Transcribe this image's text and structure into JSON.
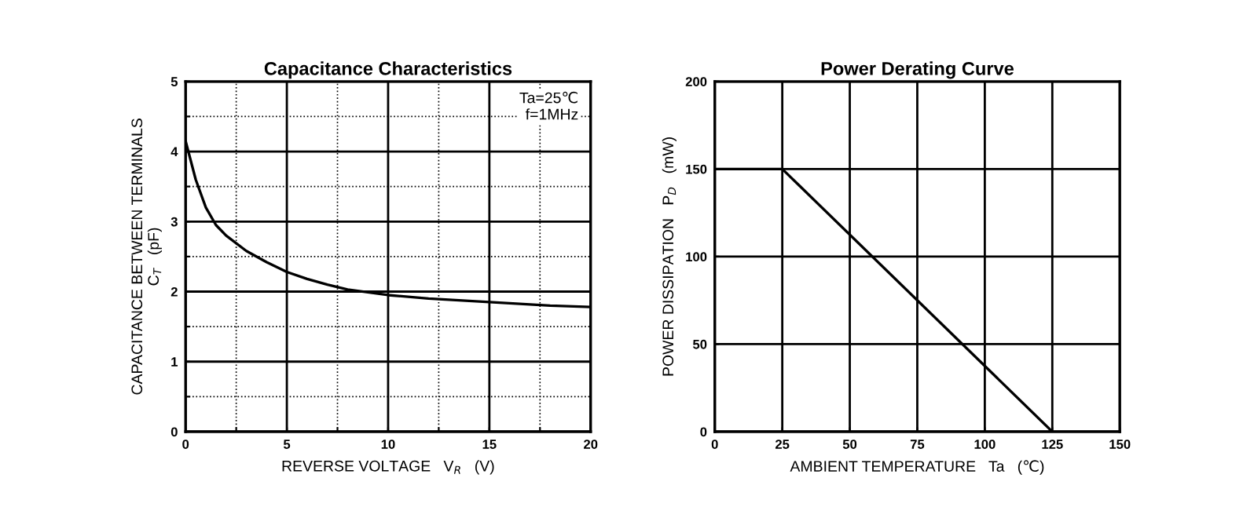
{
  "chart_data": [
    {
      "type": "line",
      "title": "Capacitance Characteristics",
      "xlabel": "REVERSE VOLTAGE   V$_{R}$   (V)",
      "ylabel": "CAPACITANCE BETWEEN TERMINALS\nC$_{T}$   (pF)",
      "x": [
        0,
        0.5,
        1,
        1.5,
        2,
        3,
        4,
        5,
        6,
        7,
        8,
        10,
        12,
        15,
        18,
        20
      ],
      "series": [
        {
          "color": "#000000",
          "values": [
            4.15,
            3.6,
            3.2,
            2.95,
            2.8,
            2.58,
            2.42,
            2.28,
            2.18,
            2.1,
            2.03,
            1.95,
            1.9,
            1.85,
            1.8,
            1.78
          ]
        }
      ],
      "xlim": [
        0,
        20
      ],
      "ylim": [
        0,
        5
      ],
      "xticks": [
        0,
        {
          "value": 2.5,
          "label": null
        },
        5,
        {
          "value": 7.5,
          "label": null
        },
        10,
        {
          "value": 12.5,
          "label": null
        },
        15,
        {
          "value": 17.5,
          "label": null
        },
        20
      ],
      "yticks": [
        0,
        {
          "value": 0.5,
          "label": null
        },
        1,
        {
          "value": 1.5,
          "label": null
        },
        2,
        {
          "value": 2.5,
          "label": null
        },
        3,
        {
          "value": 3.5,
          "label": null
        },
        4,
        {
          "value": 4.5,
          "label": null
        },
        5
      ],
      "grid": true,
      "marker": "none",
      "line_style": "solid",
      "annotations": [
        "Ta=25℃\nf=1MHz"
      ]
    },
    {
      "type": "line",
      "title": "Power Derating Curve",
      "xlabel": "AMBIENT TEMPERATURE   Ta   (℃)",
      "ylabel": "POWER DISSIPATION   P$_{D}$   (mW)",
      "x": [
        0,
        25,
        125
      ],
      "series": [
        {
          "color": "#000000",
          "values": [
            150,
            150,
            0
          ]
        }
      ],
      "xlim": [
        0,
        150
      ],
      "ylim": [
        0,
        200
      ],
      "xticks": [
        0,
        25,
        50,
        75,
        100,
        125,
        150
      ],
      "yticks": [
        0,
        50,
        100,
        150,
        200
      ],
      "grid": true,
      "marker": "none",
      "line_style": "solid"
    }
  ]
}
